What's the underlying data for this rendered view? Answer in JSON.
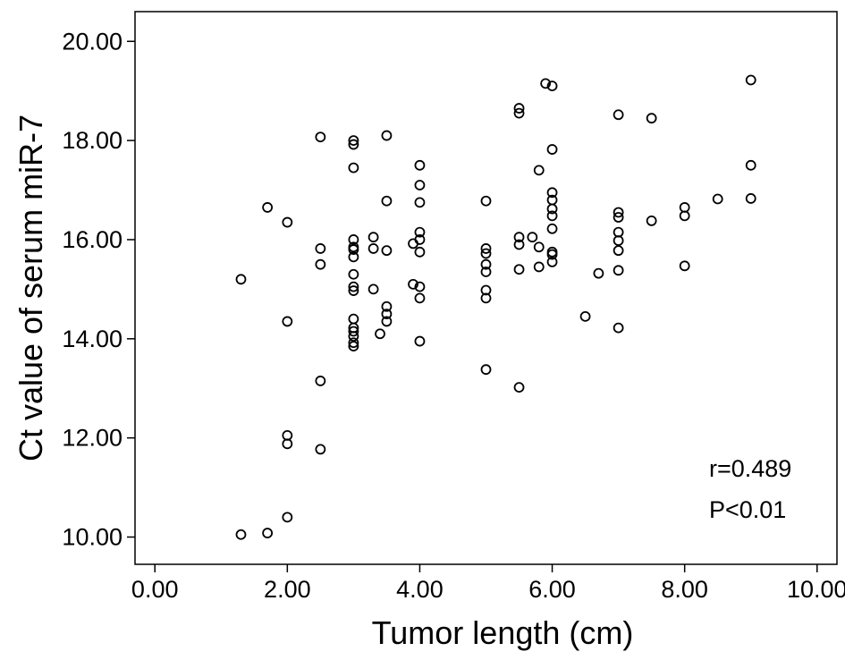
{
  "chart_data": {
    "type": "scatter",
    "title": "",
    "xlabel": "Tumor length (cm)",
    "ylabel": "Ct value of serum miR-7",
    "xlim": [
      -0.3,
      10.3
    ],
    "ylim": [
      9.45,
      20.6
    ],
    "x_ticks": [
      "0.00",
      "2.00",
      "4.00",
      "6.00",
      "8.00",
      "10.00"
    ],
    "y_ticks": [
      "10.00",
      "12.00",
      "14.00",
      "16.00",
      "18.00",
      "20.00"
    ],
    "x_tick_values": [
      0,
      2,
      4,
      6,
      8,
      10
    ],
    "y_tick_values": [
      10,
      12,
      14,
      16,
      18,
      20
    ],
    "grid": false,
    "legend": "none",
    "marker": "open-circle",
    "annotations": [
      "r=0.489",
      "P<0.01"
    ],
    "points": [
      {
        "x": 1.3,
        "y": 15.2
      },
      {
        "x": 1.3,
        "y": 10.05
      },
      {
        "x": 1.7,
        "y": 16.65
      },
      {
        "x": 1.7,
        "y": 10.08
      },
      {
        "x": 2.0,
        "y": 16.35
      },
      {
        "x": 2.0,
        "y": 14.35
      },
      {
        "x": 2.0,
        "y": 12.05
      },
      {
        "x": 2.0,
        "y": 11.88
      },
      {
        "x": 2.0,
        "y": 10.4
      },
      {
        "x": 2.5,
        "y": 18.07
      },
      {
        "x": 2.5,
        "y": 15.82
      },
      {
        "x": 2.5,
        "y": 15.5
      },
      {
        "x": 2.5,
        "y": 13.15
      },
      {
        "x": 2.5,
        "y": 11.77
      },
      {
        "x": 3.0,
        "y": 18.0
      },
      {
        "x": 3.0,
        "y": 17.92
      },
      {
        "x": 3.0,
        "y": 17.45
      },
      {
        "x": 3.0,
        "y": 16.0
      },
      {
        "x": 3.0,
        "y": 15.85
      },
      {
        "x": 3.0,
        "y": 15.8
      },
      {
        "x": 3.0,
        "y": 15.65
      },
      {
        "x": 3.0,
        "y": 15.3
      },
      {
        "x": 3.0,
        "y": 15.05
      },
      {
        "x": 3.0,
        "y": 14.97
      },
      {
        "x": 3.0,
        "y": 14.4
      },
      {
        "x": 3.0,
        "y": 14.22
      },
      {
        "x": 3.0,
        "y": 14.15
      },
      {
        "x": 3.0,
        "y": 14.05
      },
      {
        "x": 3.0,
        "y": 13.92
      },
      {
        "x": 3.0,
        "y": 13.85
      },
      {
        "x": 3.3,
        "y": 16.05
      },
      {
        "x": 3.3,
        "y": 15.82
      },
      {
        "x": 3.3,
        "y": 15.0
      },
      {
        "x": 3.4,
        "y": 14.1
      },
      {
        "x": 3.5,
        "y": 18.1
      },
      {
        "x": 3.5,
        "y": 16.78
      },
      {
        "x": 3.5,
        "y": 15.78
      },
      {
        "x": 3.5,
        "y": 14.65
      },
      {
        "x": 3.5,
        "y": 14.5
      },
      {
        "x": 3.5,
        "y": 14.35
      },
      {
        "x": 3.9,
        "y": 15.92
      },
      {
        "x": 3.9,
        "y": 15.1
      },
      {
        "x": 4.0,
        "y": 17.5
      },
      {
        "x": 4.0,
        "y": 17.1
      },
      {
        "x": 4.0,
        "y": 16.75
      },
      {
        "x": 4.0,
        "y": 16.15
      },
      {
        "x": 4.0,
        "y": 16.0
      },
      {
        "x": 4.0,
        "y": 15.75
      },
      {
        "x": 4.0,
        "y": 15.05
      },
      {
        "x": 4.0,
        "y": 14.82
      },
      {
        "x": 4.0,
        "y": 13.95
      },
      {
        "x": 5.0,
        "y": 16.78
      },
      {
        "x": 5.0,
        "y": 15.82
      },
      {
        "x": 5.0,
        "y": 15.72
      },
      {
        "x": 5.0,
        "y": 15.5
      },
      {
        "x": 5.0,
        "y": 15.35
      },
      {
        "x": 5.0,
        "y": 14.98
      },
      {
        "x": 5.0,
        "y": 14.82
      },
      {
        "x": 5.0,
        "y": 13.38
      },
      {
        "x": 5.5,
        "y": 18.65
      },
      {
        "x": 5.5,
        "y": 18.55
      },
      {
        "x": 5.5,
        "y": 16.05
      },
      {
        "x": 5.5,
        "y": 15.9
      },
      {
        "x": 5.5,
        "y": 15.4
      },
      {
        "x": 5.5,
        "y": 13.02
      },
      {
        "x": 5.7,
        "y": 16.05
      },
      {
        "x": 5.8,
        "y": 17.4
      },
      {
        "x": 5.8,
        "y": 15.85
      },
      {
        "x": 5.8,
        "y": 15.45
      },
      {
        "x": 5.9,
        "y": 19.15
      },
      {
        "x": 6.0,
        "y": 19.1
      },
      {
        "x": 6.0,
        "y": 17.82
      },
      {
        "x": 6.0,
        "y": 16.95
      },
      {
        "x": 6.0,
        "y": 16.8
      },
      {
        "x": 6.0,
        "y": 16.62
      },
      {
        "x": 6.0,
        "y": 16.48
      },
      {
        "x": 6.0,
        "y": 16.22
      },
      {
        "x": 6.0,
        "y": 15.75
      },
      {
        "x": 6.0,
        "y": 15.7
      },
      {
        "x": 6.0,
        "y": 15.55
      },
      {
        "x": 6.5,
        "y": 14.45
      },
      {
        "x": 6.7,
        "y": 15.32
      },
      {
        "x": 7.0,
        "y": 18.52
      },
      {
        "x": 7.0,
        "y": 16.55
      },
      {
        "x": 7.0,
        "y": 16.45
      },
      {
        "x": 7.0,
        "y": 16.15
      },
      {
        "x": 7.0,
        "y": 15.98
      },
      {
        "x": 7.0,
        "y": 15.78
      },
      {
        "x": 7.0,
        "y": 15.38
      },
      {
        "x": 7.0,
        "y": 14.22
      },
      {
        "x": 7.5,
        "y": 18.45
      },
      {
        "x": 7.5,
        "y": 16.38
      },
      {
        "x": 8.0,
        "y": 16.65
      },
      {
        "x": 8.0,
        "y": 16.48
      },
      {
        "x": 8.0,
        "y": 15.47
      },
      {
        "x": 8.5,
        "y": 16.82
      },
      {
        "x": 9.0,
        "y": 19.22
      },
      {
        "x": 9.0,
        "y": 17.5
      },
      {
        "x": 9.0,
        "y": 16.83
      }
    ]
  }
}
